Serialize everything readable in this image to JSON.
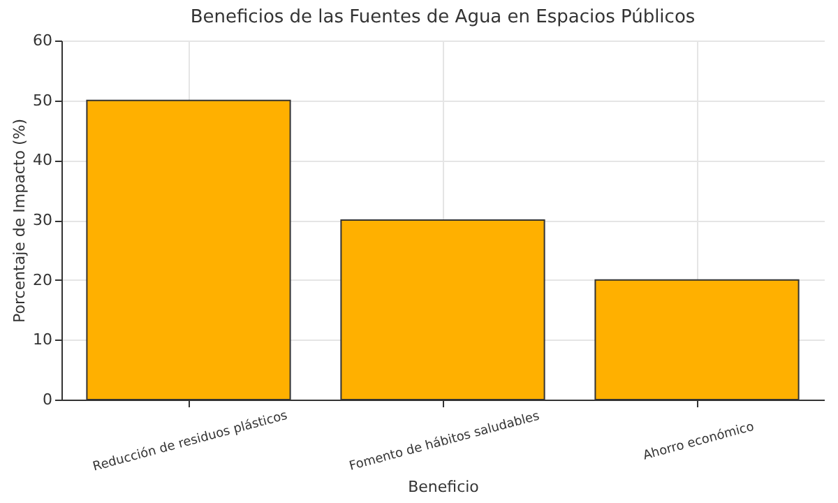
{
  "chart_data": {
    "type": "bar",
    "title": "Beneficios de las Fuentes de Agua en Espacios Públicos",
    "xlabel": "Beneficio",
    "ylabel": "Porcentaje de Impacto (%)",
    "categories": [
      "Reducción de residuos plásticos",
      "Fomento de hábitos saludables",
      "Ahorro económico"
    ],
    "values": [
      50,
      30,
      20
    ],
    "color": "#ffb000",
    "ylim": [
      0,
      60
    ],
    "yticks": [
      0,
      10,
      20,
      30,
      40,
      50,
      60
    ],
    "grid": true
  }
}
